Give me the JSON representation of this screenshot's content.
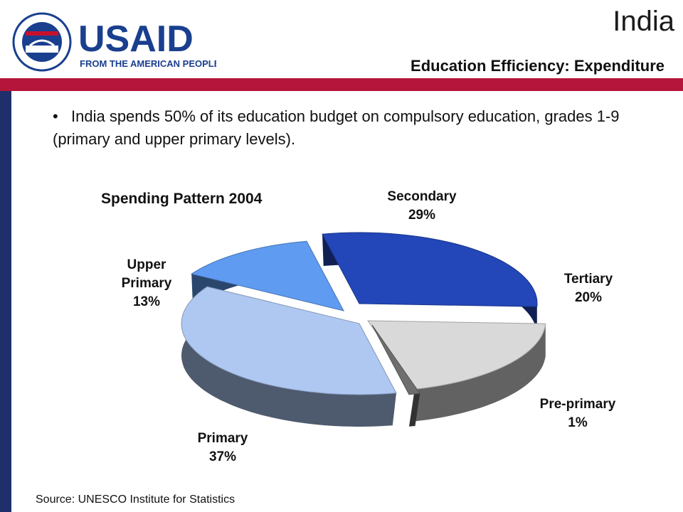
{
  "header": {
    "country": "India",
    "subtitle": "Education Efficiency: Expenditure",
    "logo_wordmark": "USAID",
    "logo_tagline": "FROM THE AMERICAN PEOPLE",
    "seal_text_top": "UNITED STATES AGENCY",
    "seal_text_bottom": "INTERNATIONAL DEVELOPMENT"
  },
  "body": {
    "bullet_mark": "•",
    "bullet_text": "India spends 50% of its education budget on compulsory education, grades 1-9 (primary and upper primary levels)."
  },
  "colors": {
    "navy": "#1f2f6b",
    "crimson": "#b5153a",
    "logo_blue": "#1a3f8f",
    "logo_red": "#c8102e"
  },
  "chart_data": {
    "type": "pie",
    "title": "Spending Pattern 2004",
    "slices": [
      {
        "label": "Secondary",
        "value": 29,
        "value_label": "29%",
        "color": "#2347b8"
      },
      {
        "label": "Tertiary",
        "value": 20,
        "value_label": "20%",
        "color": "#d9d9d9"
      },
      {
        "label": "Pre-primary",
        "value": 1,
        "value_label": "1%",
        "color": "#6e6e6e"
      },
      {
        "label": "Primary",
        "value": 37,
        "value_label": "37%",
        "color": "#aec8f2"
      },
      {
        "label": "Upper Primary",
        "value": 13,
        "value_label": "13%",
        "color": "#5f9bf0"
      }
    ]
  },
  "footer": {
    "source": "Source: UNESCO Institute for Statistics"
  }
}
